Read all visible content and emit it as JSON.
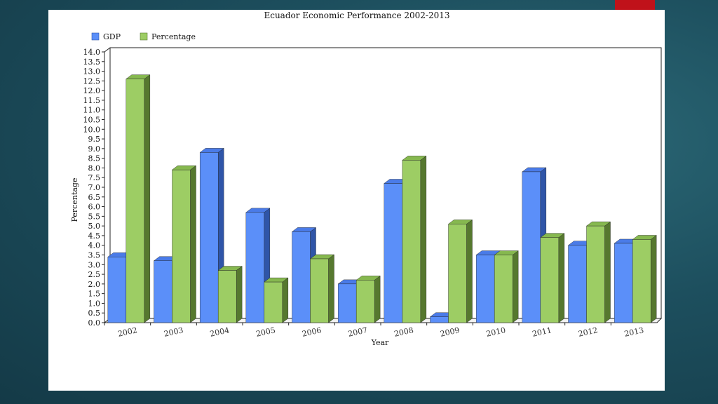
{
  "chart_data": {
    "type": "bar",
    "title": "Ecuador Economic Performance 2002-2013",
    "xlabel": "Year",
    "ylabel": "Percentage",
    "categories": [
      "2002",
      "2003",
      "2004",
      "2005",
      "2006",
      "2007",
      "2008",
      "2009",
      "2010",
      "2011",
      "2012",
      "2013"
    ],
    "series": [
      {
        "name": "GDP",
        "values": [
          3.4,
          3.2,
          8.8,
          5.7,
          4.7,
          2.0,
          7.2,
          0.3,
          3.5,
          7.8,
          4.0,
          4.1
        ]
      },
      {
        "name": "Percentage",
        "values": [
          12.6,
          7.9,
          2.7,
          2.1,
          3.3,
          2.2,
          8.4,
          5.1,
          3.5,
          4.4,
          5.0,
          4.3
        ]
      }
    ],
    "ylim": [
      0,
      14
    ],
    "ytick_step": 0.5,
    "ytick_labels": [
      "0.0",
      "0.5",
      "1.0",
      "1.5",
      "2.0",
      "2.5",
      "3.0",
      "3.5",
      "4.0",
      "4.5",
      "5.0",
      "5.5",
      "6.0",
      "6.5",
      "7.0",
      "7.5",
      "8.0",
      "8.5",
      "9.0",
      "9.5",
      "10.0",
      "10.5",
      "11.0",
      "11.5",
      "12.0",
      "12.5",
      "13.0",
      "13.5",
      "14.0"
    ],
    "legend_position": "top-left",
    "grid": false,
    "colors": {
      "gdp_front": "#5b8ff9",
      "gdp_top": "#4a7be8",
      "gdp_side": "#2f55a8",
      "pct_front": "#9dcd64",
      "pct_top": "#86b84f",
      "pct_side": "#56782f"
    }
  }
}
